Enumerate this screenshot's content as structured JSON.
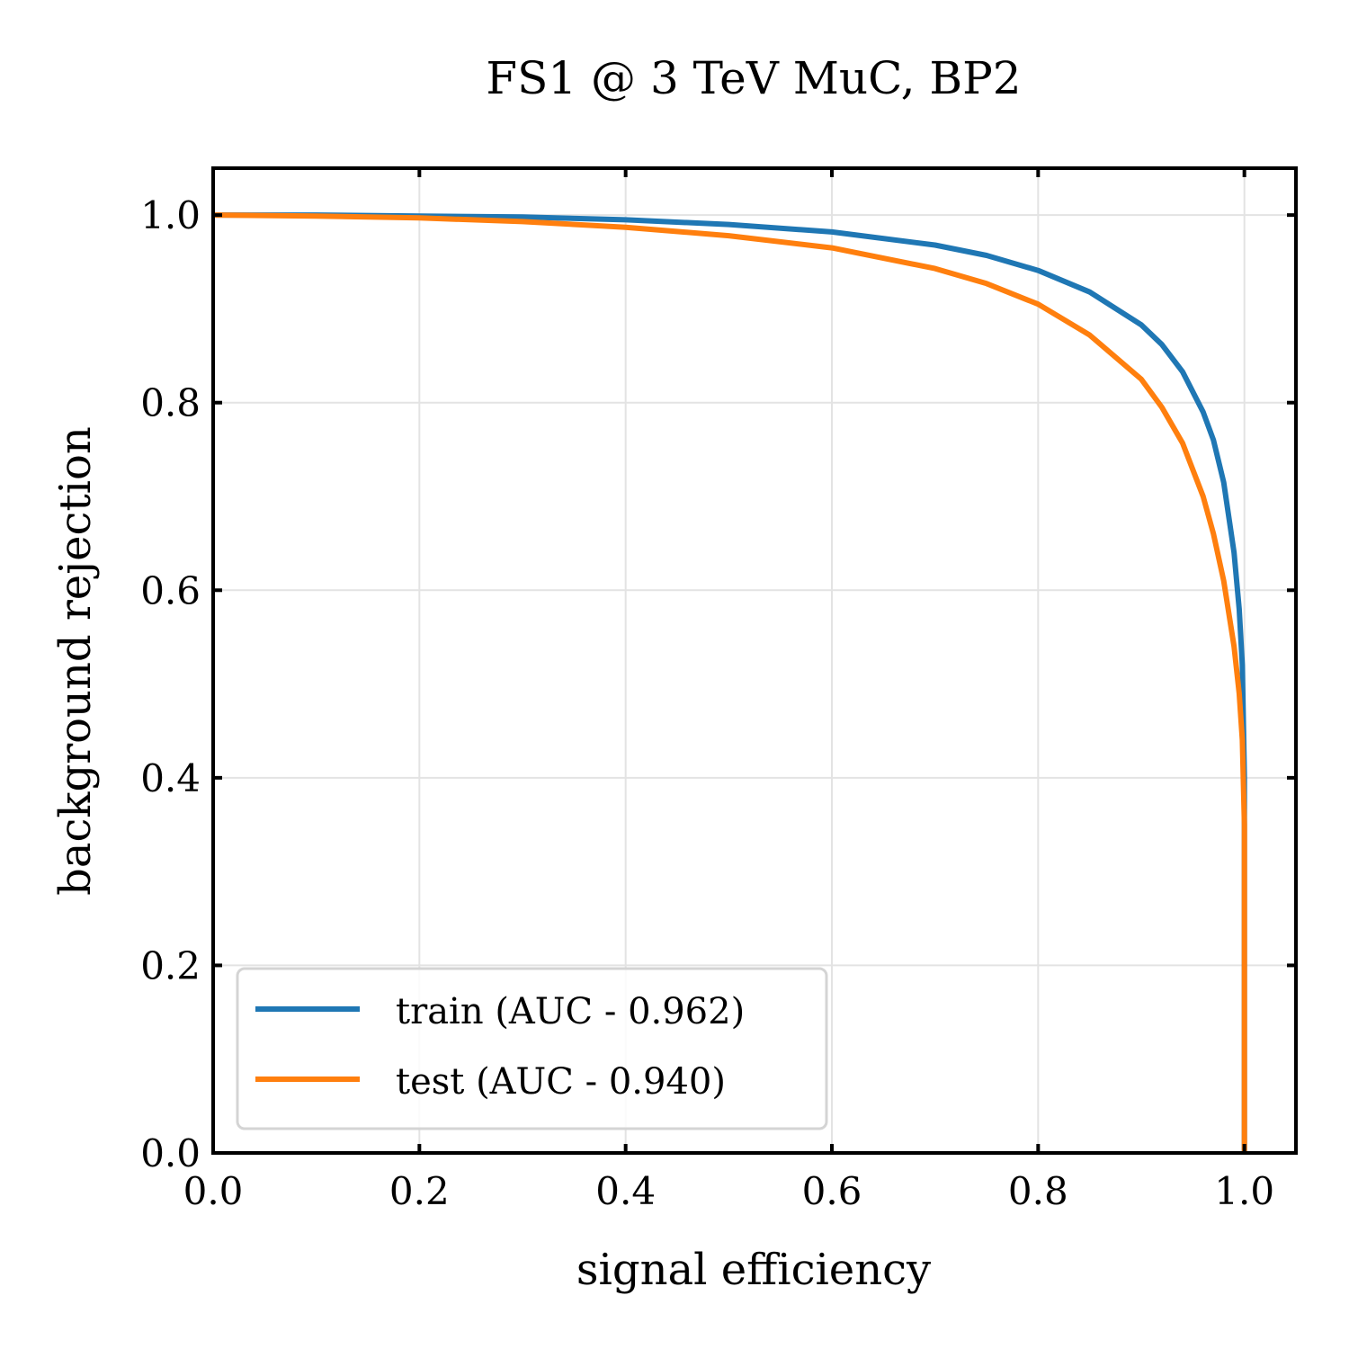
{
  "chart_data": {
    "type": "line",
    "title": "FS1 @ 3 TeV MuC, BP2",
    "xlabel": "signal efficiency",
    "ylabel": "background rejection",
    "xlim": [
      0.0,
      1.05
    ],
    "ylim": [
      0.0,
      1.05
    ],
    "grid": true,
    "legend_position": "lower-left",
    "x_ticks": [
      0.0,
      0.2,
      0.4,
      0.6,
      0.8,
      1.0
    ],
    "y_ticks": [
      0.0,
      0.2,
      0.4,
      0.6,
      0.8,
      1.0
    ],
    "x_tick_labels": [
      "0.0",
      "0.2",
      "0.4",
      "0.6",
      "0.8",
      "1.0"
    ],
    "y_tick_labels": [
      "0.0",
      "0.2",
      "0.4",
      "0.6",
      "0.8",
      "1.0"
    ],
    "series": [
      {
        "name": "train",
        "label": "train (AUC - 0.962)",
        "color": "#1f77b4",
        "x": [
          0.0,
          0.1,
          0.2,
          0.3,
          0.4,
          0.5,
          0.6,
          0.7,
          0.75,
          0.8,
          0.85,
          0.9,
          0.92,
          0.94,
          0.96,
          0.97,
          0.98,
          0.99,
          0.995,
          0.998,
          1.0,
          1.0
        ],
        "y": [
          1.0,
          1.0,
          0.999,
          0.998,
          0.995,
          0.99,
          0.982,
          0.968,
          0.957,
          0.941,
          0.918,
          0.883,
          0.862,
          0.833,
          0.79,
          0.76,
          0.715,
          0.64,
          0.58,
          0.52,
          0.4,
          0.0
        ]
      },
      {
        "name": "test",
        "label": "test (AUC - 0.940)",
        "color": "#ff7f0e",
        "x": [
          0.0,
          0.1,
          0.2,
          0.3,
          0.4,
          0.5,
          0.6,
          0.7,
          0.75,
          0.8,
          0.85,
          0.9,
          0.92,
          0.94,
          0.96,
          0.97,
          0.98,
          0.99,
          0.995,
          0.998,
          1.0,
          1.0
        ],
        "y": [
          1.0,
          0.999,
          0.997,
          0.993,
          0.987,
          0.978,
          0.965,
          0.943,
          0.927,
          0.905,
          0.872,
          0.825,
          0.795,
          0.757,
          0.7,
          0.66,
          0.61,
          0.54,
          0.49,
          0.44,
          0.35,
          0.0
        ]
      }
    ]
  }
}
